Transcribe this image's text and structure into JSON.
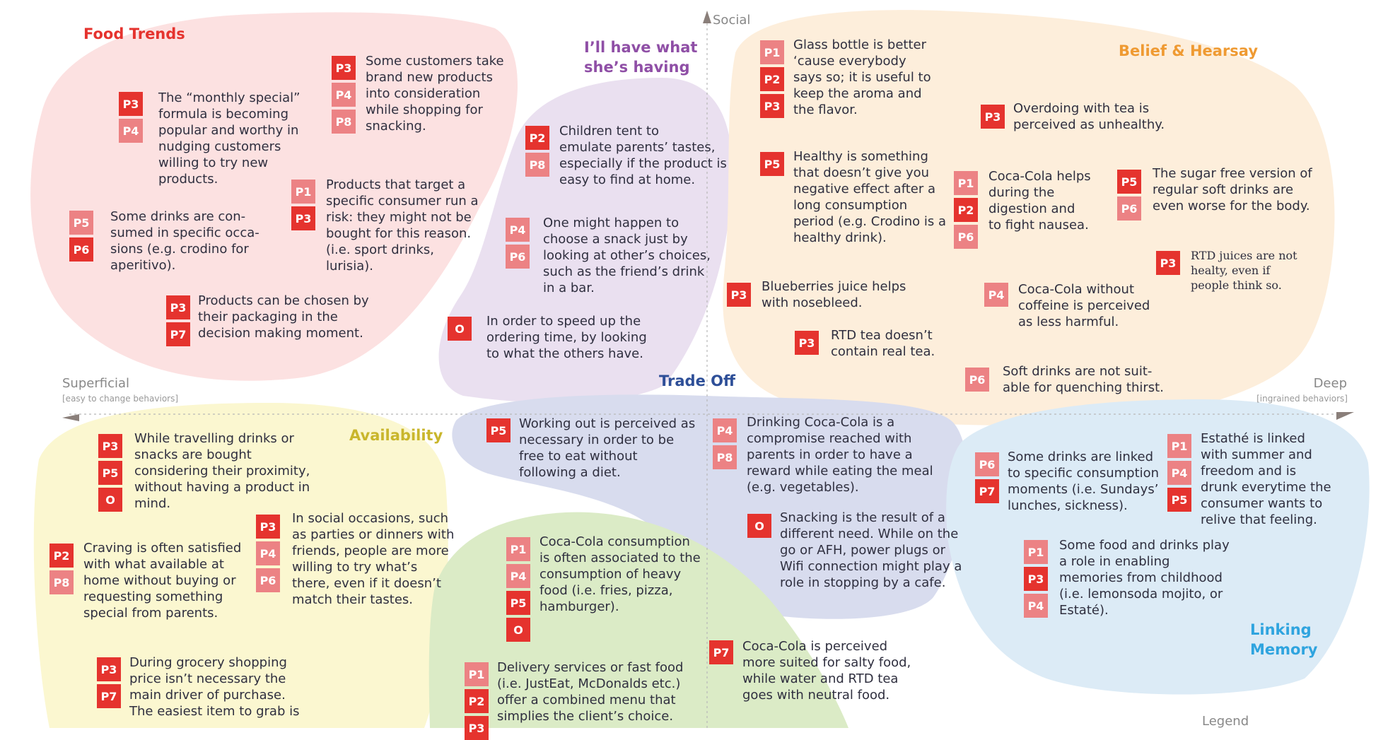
{
  "colors": {
    "badge_dark": "#e5332e",
    "badge_light": "#ec8284",
    "food_trends_bg": "#fce1e1",
    "ill_have_bg": "#eae0f0",
    "belief_bg": "#fdeedb",
    "availability_bg": "#fbf7d0",
    "trade_off_bg": "#d8dcee",
    "linking_bg": "#dcebf6",
    "bottom_green_bg": "#dbebc6"
  },
  "axes": {
    "top": "Social",
    "left": "Superficial",
    "left_sub": "[easy to change behaviors]",
    "right": "Deep",
    "right_sub": "[ingrained behaviors]",
    "legend": "Legend"
  },
  "clusters": {
    "food_trends": "Food Trends",
    "ill_have_1": "I’ll have what",
    "ill_have_2": "she’s having",
    "belief": "Belief & Hearsay",
    "trade_off": "Trade Off",
    "availability": "Availability",
    "linking_1": "Linking",
    "linking_2": "Memory"
  },
  "notes": [
    {
      "badges": [
        "P3",
        "P4",
        "P8"
      ],
      "lines": [
        "Some customers take",
        "brand new products",
        "into consideration",
        "while shopping for",
        "snacking."
      ]
    },
    {
      "badges": [
        "P3",
        "P4"
      ],
      "lines": [
        "The “monthly special”",
        "formula is becoming",
        "popular and worthy in",
        "nudging customers",
        "willing to try new",
        "products."
      ]
    },
    {
      "badges": [
        "P1",
        "P3"
      ],
      "lines": [
        "Products that target a",
        "specific consumer run a",
        "risk: they might not be",
        "bought for this reason.",
        "(i.e. sport drinks,",
        "lurisia)."
      ]
    },
    {
      "badges": [
        "P5",
        "P6"
      ],
      "lines": [
        "Some drinks are con-",
        "sumed in specific occa-",
        "sions (e.g. crodino for",
        "aperitivo)."
      ]
    },
    {
      "badges": [
        "P3",
        "P7"
      ],
      "lines": [
        "Products can be chosen by",
        "their packaging in the",
        "decision making moment."
      ]
    },
    {
      "badges": [
        "P2",
        "P8"
      ],
      "lines": [
        "Children tent to",
        "emulate parents’ tastes,",
        "especially if the product is",
        "easy to find at home."
      ]
    },
    {
      "badges": [
        "P4",
        "P6"
      ],
      "lines": [
        "One might happen to",
        "choose a snack just by",
        "looking at other’s choices,",
        "such as the  friend’s drink",
        "in a bar."
      ]
    },
    {
      "badges": [
        "O"
      ],
      "lines": [
        "In order to speed up the",
        "ordering time, by looking",
        "to what the others have."
      ]
    },
    {
      "badges": [
        "P1",
        "P2",
        "P3"
      ],
      "lines": [
        "Glass bottle is better",
        "‘cause everybody",
        "says so; it is useful to",
        "keep the aroma and",
        "the flavor."
      ]
    },
    {
      "badges": [
        "P5"
      ],
      "lines": [
        "Healthy is something",
        "that doesn’t give you",
        "negative effect after a",
        "long  consumption",
        "period (e.g. Crodino is a",
        "healthy drink)."
      ]
    },
    {
      "badges": [
        "P3"
      ],
      "lines": [
        "Blueberries juice helps",
        "with nosebleed."
      ]
    },
    {
      "badges": [
        "P3"
      ],
      "lines": [
        "RTD tea doesn’t",
        "contain real tea."
      ]
    },
    {
      "badges": [
        "P3"
      ],
      "lines": [
        "Overdoing with tea is",
        "perceived as unhealthy."
      ]
    },
    {
      "badges": [
        "P1",
        "P2",
        "P6"
      ],
      "lines": [
        "Coca-Cola helps",
        "during the",
        "digestion and",
        "to fight nausea."
      ]
    },
    {
      "badges": [
        "P5",
        "P6"
      ],
      "lines": [
        "The sugar free version of",
        "regular soft drinks are",
        "even worse for the body."
      ]
    },
    {
      "badges": [
        "P3"
      ],
      "lines": [
        "RTD juices are not",
        "healty, even if",
        "people think so."
      ]
    },
    {
      "badges": [
        "P4"
      ],
      "lines": [
        "Coca-Cola without",
        "coffeine is perceived",
        "as less harmful."
      ]
    },
    {
      "badges": [
        "P6"
      ],
      "lines": [
        "Soft drinks are not suit-",
        "able for quenching thirst."
      ]
    },
    {
      "badges": [
        "P3",
        "P5",
        "O"
      ],
      "lines": [
        "While travelling drinks or",
        "snacks are bought",
        "considering their proximity,",
        "without having a product in",
        "mind."
      ]
    },
    {
      "badges": [
        "P3",
        "P4",
        "P6"
      ],
      "lines": [
        "In social occasions, such",
        "as parties or dinners with",
        "friends, people are more",
        "willing to try what’s",
        "there, even if it doesn’t",
        "match their tastes."
      ]
    },
    {
      "badges": [
        "P2",
        "P8"
      ],
      "lines": [
        "Craving is often satisfied",
        "with what available at",
        "home without buying or",
        "requesting something",
        "special from parents."
      ]
    },
    {
      "badges": [
        "P3",
        "P7"
      ],
      "lines": [
        "During grocery shopping",
        "price isn’t necessary the",
        "main driver of purchase.",
        "The easiest item to grab is"
      ]
    },
    {
      "badges": [
        "P5"
      ],
      "lines": [
        "Working out is perceived as",
        "necessary in order to be",
        "free to eat without",
        "following a diet."
      ]
    },
    {
      "badges": [
        "P4",
        "P8"
      ],
      "lines": [
        "Drinking Coca-Cola is a",
        "compromise reached with",
        "parents in order to have a",
        "reward while eating the meal",
        "(e.g. vegetables)."
      ]
    },
    {
      "badges": [
        "O"
      ],
      "lines": [
        "Snacking is the result of a",
        "different need. While on the",
        "go or AFH, power plugs or",
        "Wifi connection might play a",
        "role in stopping by a cafe."
      ]
    },
    {
      "badges": [
        "P1",
        "P4",
        "P5",
        "O"
      ],
      "lines": [
        "Coca-Cola consumption",
        "is often associated to the",
        "consumption of heavy",
        "food (i.e. fries, pizza,",
        "hamburger)."
      ]
    },
    {
      "badges": [
        "P1",
        "P2",
        "P3"
      ],
      "lines": [
        "Delivery services or fast food",
        "(i.e. JustEat, McDonalds etc.)",
        "offer a combined menu that",
        "simplies the client’s choice."
      ]
    },
    {
      "badges": [
        "P7"
      ],
      "lines": [
        "Coca-Cola is perceived",
        "more suited for salty food,",
        "while water and RTD tea",
        "goes with neutral food."
      ]
    },
    {
      "badges": [
        "P6",
        "P7"
      ],
      "lines": [
        "Some drinks are linked",
        "to specific consumption",
        "moments  (i.e. Sundays’",
        "lunches, sickness)."
      ]
    },
    {
      "badges": [
        "P1",
        "P4",
        "P5"
      ],
      "lines": [
        "Estathé is linked",
        "with summer and",
        "freedom and is",
        "drunk everytime the",
        "consumer wants to",
        "relive that feeling."
      ]
    },
    {
      "badges": [
        "P1",
        "P3",
        "P4"
      ],
      "lines": [
        "Some food and drinks play",
        "a role in enabling",
        "memories from childhood",
        "(i.e. lemonsoda mojito, or",
        "Estaté)."
      ]
    }
  ]
}
